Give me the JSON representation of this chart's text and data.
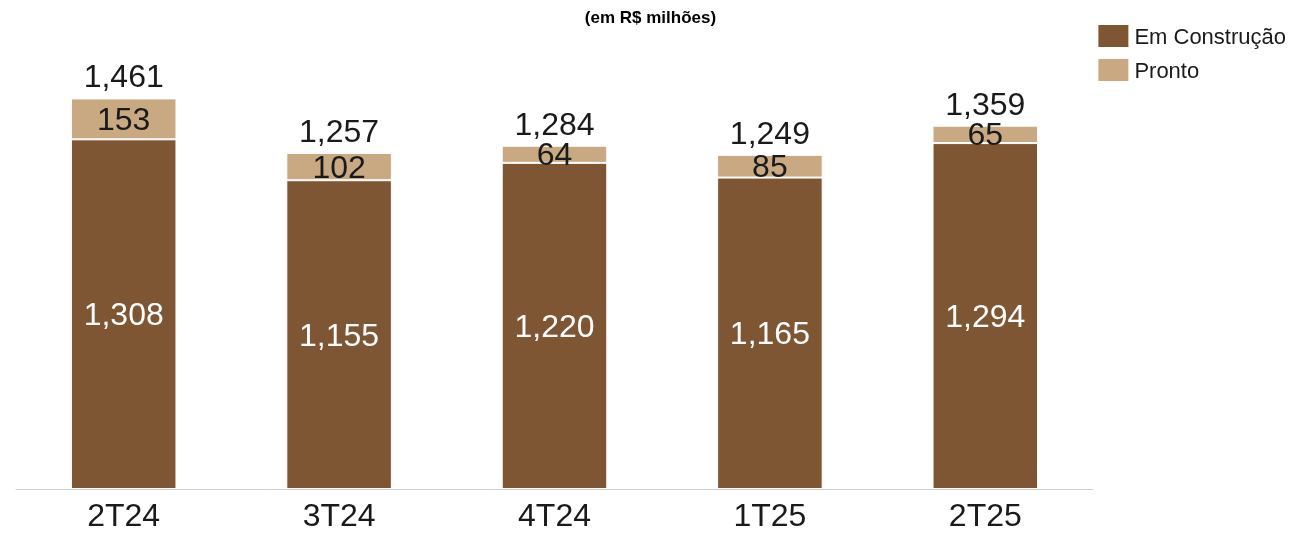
{
  "chart_data": {
    "type": "bar",
    "title": "(em R$ milhões)",
    "stacked": true,
    "categories": [
      "2T24",
      "3T24",
      "4T24",
      "1T25",
      "2T25"
    ],
    "series": [
      {
        "name": "Em Construção",
        "color": "#7f5634",
        "values": [
          1308,
          1155,
          1220,
          1165,
          1294
        ],
        "value_labels": [
          "1,308",
          "1,155",
          "1,220",
          "1,165",
          "1,294"
        ]
      },
      {
        "name": "Pronto",
        "color": "#c9a982",
        "values": [
          153,
          102,
          64,
          85,
          65
        ],
        "value_labels": [
          "153",
          "102",
          "64",
          "85",
          "65"
        ]
      }
    ],
    "totals": [
      "1,461",
      "1,257",
      "1,284",
      "1,249",
      "1,359"
    ],
    "legend": "top right",
    "grid": false
  }
}
